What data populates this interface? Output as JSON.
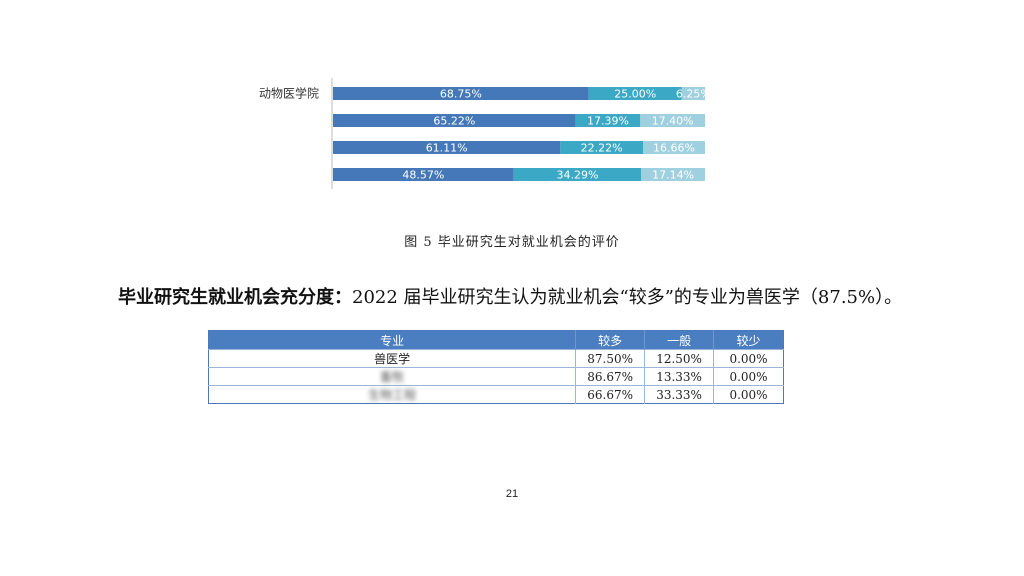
{
  "chart_data": {
    "type": "bar",
    "orientation": "horizontal",
    "stacked": true,
    "categories": [
      "动物医学院",
      "",
      "",
      ""
    ],
    "series": [
      {
        "values": [
          68.75,
          65.22,
          61.11,
          48.57
        ],
        "labels": [
          "68.75%",
          "65.22%",
          "61.11%",
          "48.57%"
        ],
        "color": "#4478b8"
      },
      {
        "values": [
          25.0,
          17.39,
          22.22,
          34.29
        ],
        "labels": [
          "25.00%",
          "17.39%",
          "22.22%",
          "34.29%"
        ],
        "color": "#3ba9c6"
      },
      {
        "values": [
          6.25,
          17.4,
          16.66,
          17.14
        ],
        "labels": [
          "6.25%",
          "17.40%",
          "16.66%",
          "17.14%"
        ],
        "color": "#9fd0e0"
      }
    ],
    "xlim": [
      0,
      100
    ]
  },
  "caption": "图 5  毕业研究生对就业机会的评价",
  "paragraph": {
    "lead": "毕业研究生就业机会充分度：",
    "text": "2022 届毕业研究生认为就业机会“较多”的专业为兽医学（87.5%）。"
  },
  "table": {
    "headers": [
      "专业",
      "较多",
      "一般",
      "较少"
    ],
    "rows": [
      [
        "兽医学",
        "87.50%",
        "12.50%",
        "0.00%"
      ],
      [
        "畜牧",
        "86.67%",
        "13.33%",
        "0.00%"
      ],
      [
        "生物工程",
        "66.67%",
        "33.33%",
        "0.00%"
      ]
    ]
  },
  "page_number": "21"
}
